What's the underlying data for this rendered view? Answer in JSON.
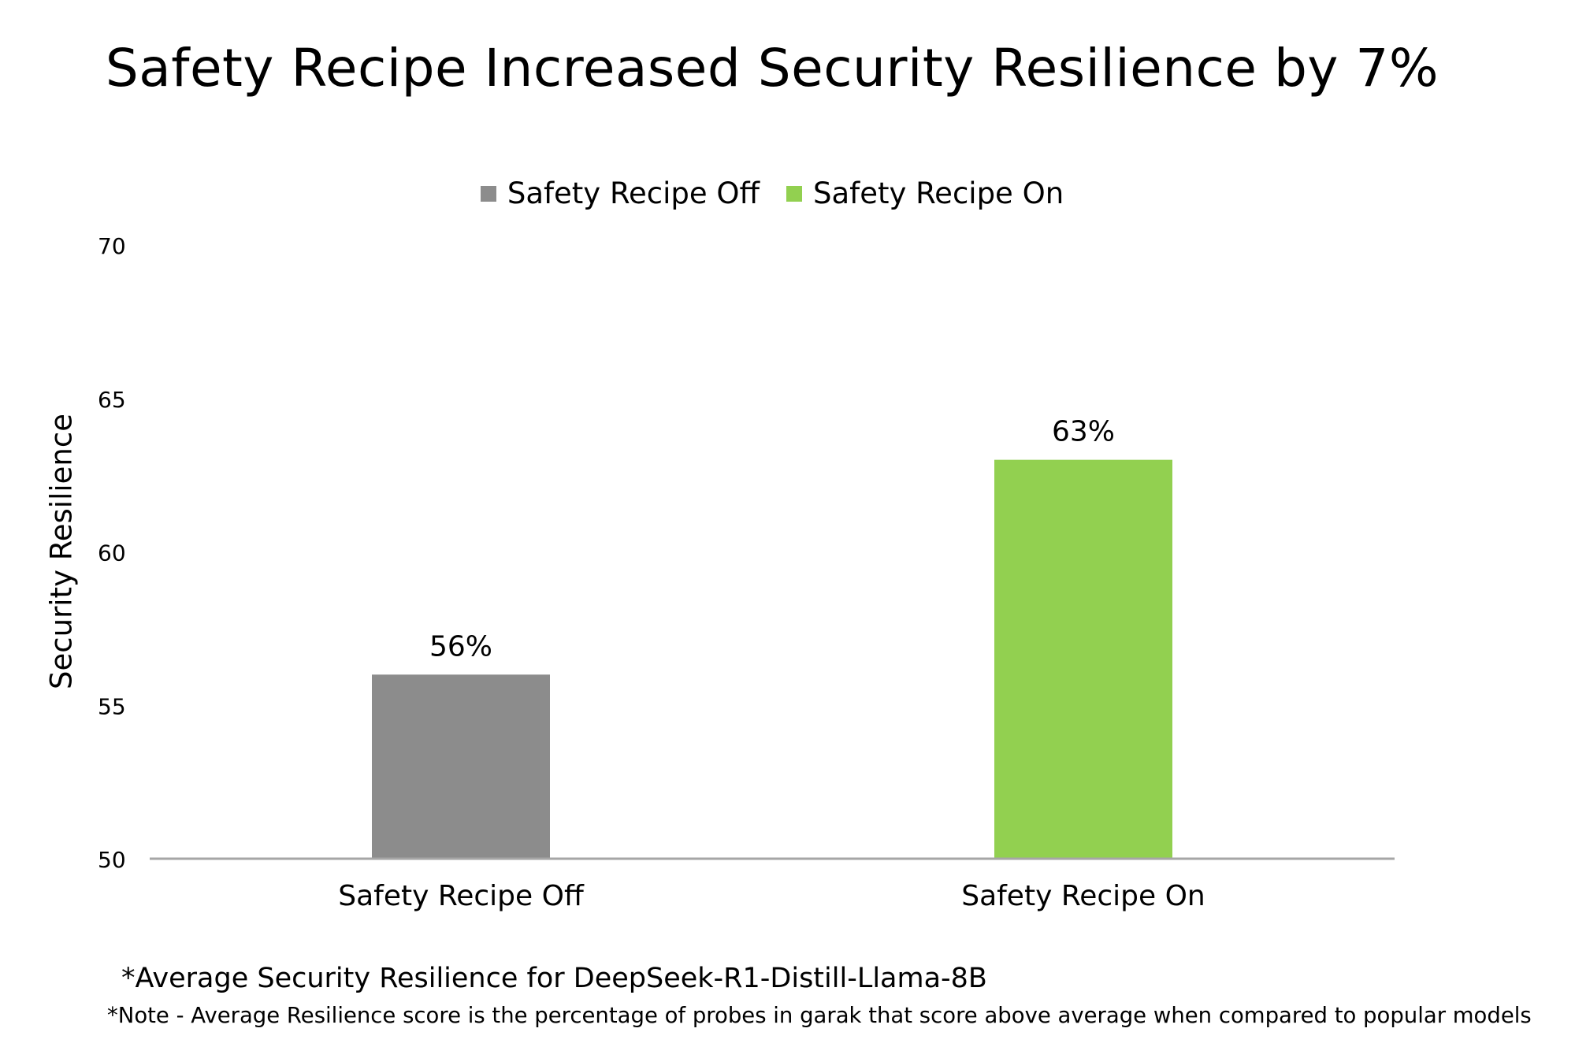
{
  "chart_data": {
    "type": "bar",
    "title": "Safety Recipe Increased Security Resilience by 7%",
    "xlabel": "",
    "ylabel": "Security Resilience",
    "ylim": [
      50,
      70
    ],
    "yticks": [
      "50",
      "55",
      "60",
      "65",
      "70"
    ],
    "categories": [
      "Safety Recipe Off",
      "Safety Recipe On"
    ],
    "values": [
      56,
      63
    ],
    "data_labels": [
      "56%",
      "63%"
    ],
    "colors": [
      "#8c8c8c",
      "#92d050"
    ],
    "grid": false,
    "legend": {
      "placement": "top-center",
      "entries": [
        {
          "label": "Safety Recipe Off",
          "color": "#8c8c8c"
        },
        {
          "label": "Safety Recipe On",
          "color": "#92d050"
        }
      ]
    },
    "footnotes": [
      "*Average Security Resilience for DeepSeek-R1-Distill-Llama-8B",
      "*Note - Average Resilience score is the percentage of probes in garak  that score above average when compared to popular models"
    ]
  }
}
